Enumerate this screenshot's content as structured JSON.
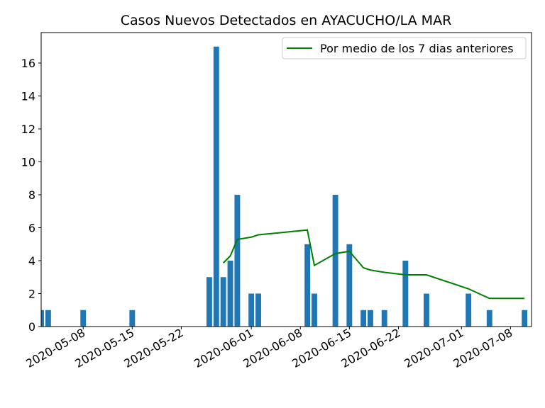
{
  "chart_data": {
    "type": "bar",
    "title": "Casos Nuevos Detectados en AYACUCHO/LA MAR",
    "xlabel": "",
    "ylabel": "",
    "ylim": [
      0,
      17.85
    ],
    "xlim": [
      "2020-05-02",
      "2020-07-11"
    ],
    "yticks": [
      0,
      2,
      4,
      6,
      8,
      10,
      12,
      14,
      16
    ],
    "xticks": [
      "2020-05-08",
      "2020-05-15",
      "2020-05-22",
      "2020-06-01",
      "2020-06-08",
      "2020-06-15",
      "2020-06-22",
      "2020-07-01",
      "2020-07-08"
    ],
    "legend_position": "top-right",
    "grid": false,
    "colors": {
      "bars": "#1f77b4",
      "line": "#008000"
    },
    "series": [
      {
        "type": "bar",
        "x": [
          "2020-05-02",
          "2020-05-03",
          "2020-05-08",
          "2020-05-15",
          "2020-05-26",
          "2020-05-27",
          "2020-05-28",
          "2020-05-29",
          "2020-05-30",
          "2020-06-01",
          "2020-06-02",
          "2020-06-09",
          "2020-06-10",
          "2020-06-13",
          "2020-06-15",
          "2020-06-17",
          "2020-06-18",
          "2020-06-20",
          "2020-06-23",
          "2020-06-26",
          "2020-07-02",
          "2020-07-05",
          "2020-07-10"
        ],
        "values": [
          1,
          1,
          1,
          1,
          3,
          17,
          3,
          4,
          8,
          2,
          2,
          5,
          2,
          8,
          5,
          1,
          1,
          1,
          4,
          2,
          2,
          1,
          1
        ]
      },
      {
        "type": "line",
        "name": "Por medio de los 7 dias anteriores",
        "x": [
          "2020-05-28",
          "2020-05-29",
          "2020-05-30",
          "2020-06-01",
          "2020-06-02",
          "2020-06-09",
          "2020-06-10",
          "2020-06-13",
          "2020-06-15",
          "2020-06-17",
          "2020-06-18",
          "2020-06-20",
          "2020-06-23",
          "2020-06-26",
          "2020-07-02",
          "2020-07-05",
          "2020-07-10"
        ],
        "values": [
          3.86,
          4.29,
          5.29,
          5.43,
          5.57,
          5.86,
          3.71,
          4.43,
          4.57,
          3.57,
          3.43,
          3.29,
          3.14,
          3.14,
          2.29,
          1.71,
          1.71
        ]
      }
    ]
  }
}
